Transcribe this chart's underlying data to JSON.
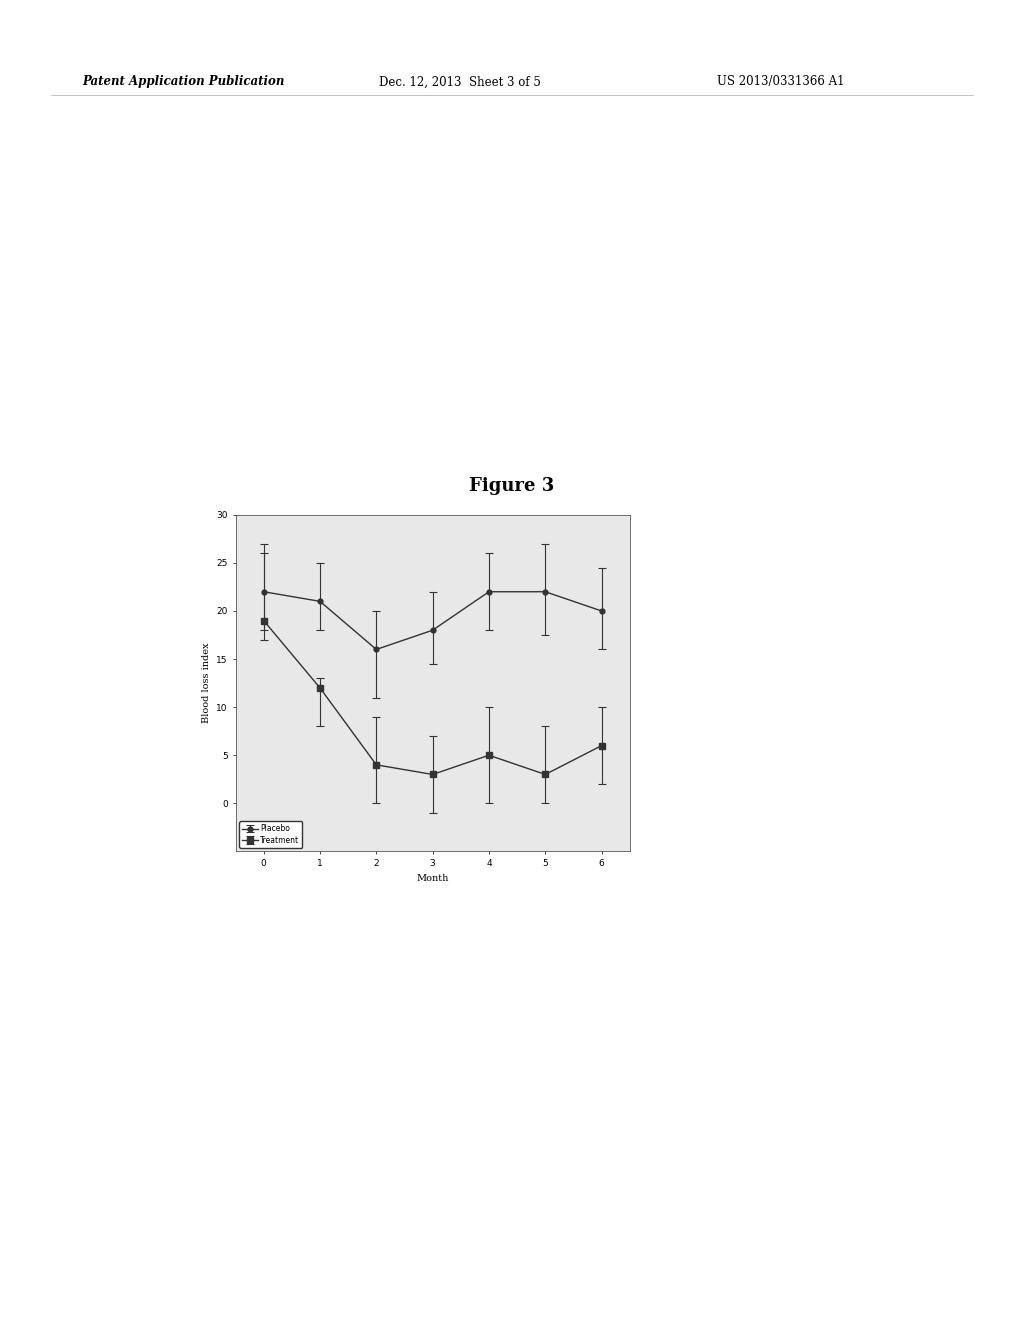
{
  "title": "Figure 3",
  "xlabel": "Month",
  "ylabel": "Blood loss index",
  "header_left": "Patent Application Publication",
  "header_center": "Dec. 12, 2013  Sheet 3 of 5",
  "header_right": "US 2013/0331366 A1",
  "xlim": [
    -0.5,
    6.5
  ],
  "ylim": [
    -5,
    30
  ],
  "xticks": [
    0,
    1,
    2,
    3,
    4,
    5,
    6
  ],
  "yticks": [
    0,
    5,
    10,
    15,
    20,
    25,
    30
  ],
  "placebo_x": [
    0,
    1,
    2,
    3,
    4,
    5,
    6
  ],
  "placebo_y": [
    22,
    21,
    16,
    18,
    22,
    22,
    20
  ],
  "placebo_yerr_lo": [
    4,
    3,
    5,
    3.5,
    4,
    4.5,
    4
  ],
  "placebo_yerr_hi": [
    5,
    4,
    4,
    4,
    4,
    5,
    4.5
  ],
  "treatment_x": [
    0,
    1,
    2,
    3,
    4,
    5,
    6
  ],
  "treatment_y": [
    19,
    12,
    4,
    3,
    5,
    3,
    6
  ],
  "treatment_yerr_lo": [
    2,
    4,
    4,
    4,
    5,
    3,
    4
  ],
  "treatment_yerr_hi": [
    7,
    1,
    5,
    4,
    5,
    5,
    4
  ],
  "placebo_color": "#333333",
  "treatment_color": "#333333",
  "background_color": "#ffffff",
  "plot_bg_color": "#e8e8e8",
  "legend_labels": [
    "Placebo",
    "Treatment"
  ],
  "title_fontsize": 13,
  "label_fontsize": 7,
  "tick_fontsize": 6.5,
  "header_fontsize": 8.5
}
